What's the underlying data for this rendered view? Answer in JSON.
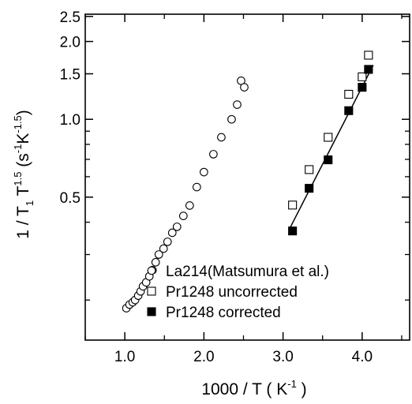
{
  "chart_data": {
    "type": "scatter",
    "x_axis": {
      "range": [
        0.5,
        4.6
      ],
      "ticks": [
        1.0,
        2.0,
        3.0,
        4.0
      ],
      "tick_labels": [
        "1.0",
        "2.0",
        "3.0",
        "4.0"
      ],
      "minor_ticks": [
        0.5,
        1.5,
        2.5,
        3.5,
        4.5
      ],
      "label_main": "1000 / T ( K",
      "label_sup": "-1",
      "label_end": " )"
    },
    "y_axis": {
      "scale": "log",
      "range": [
        0.14,
        2.55
      ],
      "ticks": [
        0.5,
        1.0,
        1.5,
        2.0,
        2.5
      ],
      "tick_labels": [
        "0.5",
        "1.0",
        "1.5",
        "2.0",
        "2.5"
      ],
      "label_parts": [
        "1 / T",
        "1",
        " T",
        "1.5",
        " (s",
        "-1",
        "K",
        "-1.5",
        ")"
      ]
    },
    "grid": false,
    "legend_position": "bottom-right",
    "series": [
      {
        "name": "La214(Matsumura et al.)",
        "marker": "open-circle",
        "points": [
          [
            1.02,
            0.186
          ],
          [
            1.06,
            0.192
          ],
          [
            1.1,
            0.196
          ],
          [
            1.13,
            0.2
          ],
          [
            1.17,
            0.208
          ],
          [
            1.2,
            0.216
          ],
          [
            1.23,
            0.226
          ],
          [
            1.27,
            0.234
          ],
          [
            1.31,
            0.247
          ],
          [
            1.35,
            0.261
          ],
          [
            1.39,
            0.28
          ],
          [
            1.43,
            0.3
          ],
          [
            1.49,
            0.316
          ],
          [
            1.54,
            0.336
          ],
          [
            1.6,
            0.364
          ],
          [
            1.66,
            0.384
          ],
          [
            1.74,
            0.423
          ],
          [
            1.82,
            0.464
          ],
          [
            1.91,
            0.547
          ],
          [
            2.0,
            0.625
          ],
          [
            2.12,
            0.733
          ],
          [
            2.22,
            0.852
          ],
          [
            2.35,
            1.0
          ],
          [
            2.42,
            1.14
          ],
          [
            2.47,
            1.41
          ],
          [
            2.51,
            1.33
          ]
        ]
      },
      {
        "name": "Pr1248 uncorrected",
        "marker": "open-square",
        "points": [
          [
            3.12,
            0.466
          ],
          [
            3.33,
            0.639
          ],
          [
            3.57,
            0.852
          ],
          [
            3.83,
            1.25
          ],
          [
            4.0,
            1.46
          ],
          [
            4.08,
            1.77
          ]
        ]
      },
      {
        "name": "Pr1248  corrected",
        "marker": "filled-square",
        "points": [
          [
            3.12,
            0.37
          ],
          [
            3.33,
            0.541
          ],
          [
            3.57,
            0.697
          ],
          [
            3.83,
            1.08
          ],
          [
            4.0,
            1.33
          ],
          [
            4.08,
            1.56
          ]
        ]
      }
    ],
    "fit_line": {
      "series": "Pr1248  corrected",
      "from": [
        3.08,
        0.376
      ],
      "to": [
        4.14,
        1.62
      ]
    }
  }
}
